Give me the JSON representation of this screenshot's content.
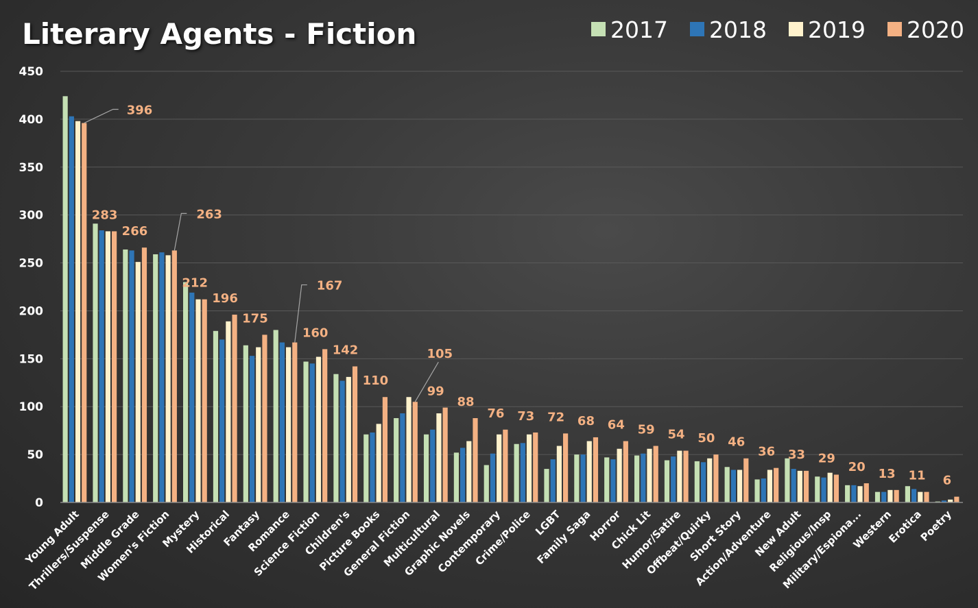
{
  "chart_data": {
    "type": "bar",
    "title": "Literary Agents - Fiction",
    "xlabel": "",
    "ylabel": "",
    "ylim": [
      0,
      450
    ],
    "yticks": [
      0,
      50,
      100,
      150,
      200,
      250,
      300,
      350,
      400,
      450
    ],
    "grid": true,
    "legend_position": "top-right",
    "categories": [
      "Young Adult",
      "Thrillers/Suspense",
      "Middle Grade",
      "Women's Fiction",
      "Mystery",
      "Historical",
      "Fantasy",
      "Romance",
      "Science Fiction",
      "Children's",
      "Picture Books",
      "General Fiction",
      "Multicultural",
      "Graphic Novels",
      "Contemporary",
      "Crime/Police",
      "LGBT",
      "Family Saga",
      "Horror",
      "Chick Lit",
      "Humor/Satire",
      "Offbeat/Quirky",
      "Short Story",
      "Action/Adventure",
      "New Adult",
      "Religious/Insp",
      "Military/Espiona...",
      "Western",
      "Erotica",
      "Poetry"
    ],
    "series": [
      {
        "name": "2017",
        "color": "#c5e0b4",
        "values": [
          424,
          291,
          264,
          259,
          230,
          179,
          164,
          180,
          147,
          134,
          71,
          88,
          71,
          52,
          39,
          61,
          35,
          50,
          47,
          49,
          44,
          43,
          37,
          24,
          46,
          27,
          18,
          11,
          17,
          1
        ]
      },
      {
        "name": "2018",
        "color": "#2e75b6",
        "values": [
          403,
          284,
          263,
          261,
          219,
          170,
          153,
          167,
          145,
          127,
          73,
          93,
          76,
          57,
          51,
          62,
          45,
          50,
          45,
          51,
          48,
          42,
          34,
          25,
          35,
          26,
          18,
          11,
          14,
          2
        ]
      },
      {
        "name": "2019",
        "color": "#fff2cc",
        "values": [
          398,
          283,
          251,
          258,
          212,
          189,
          162,
          162,
          152,
          131,
          82,
          110,
          93,
          64,
          71,
          71,
          59,
          64,
          56,
          56,
          54,
          46,
          34,
          34,
          33,
          31,
          17,
          13,
          11,
          3
        ]
      },
      {
        "name": "2020",
        "color": "#f4b183",
        "values": [
          396,
          283,
          266,
          263,
          212,
          196,
          175,
          167,
          160,
          142,
          110,
          105,
          99,
          88,
          76,
          73,
          72,
          68,
          64,
          59,
          54,
          50,
          46,
          36,
          33,
          29,
          20,
          13,
          11,
          6
        ]
      }
    ],
    "data_labels_series": "2020",
    "leader_line_categories": [
      "Young Adult",
      "Women's Fiction",
      "Romance",
      "General Fiction"
    ]
  }
}
